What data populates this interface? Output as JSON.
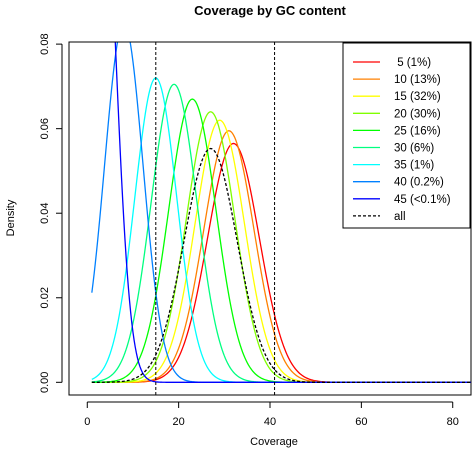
{
  "chart_data": {
    "type": "line",
    "title": "Coverage by GC content",
    "xlabel": "Coverage",
    "ylabel": "Density",
    "xlim": [
      -4,
      84
    ],
    "ylim": [
      -0.003,
      0.0805
    ],
    "x_ticks": [
      0,
      20,
      40,
      60,
      80
    ],
    "y_ticks": [
      0.0,
      0.02,
      0.04,
      0.06,
      0.08
    ],
    "y_tick_labels": [
      "0.00",
      "0.02",
      "0.04",
      "0.06",
      "0.08"
    ],
    "vlines": [
      15,
      41
    ],
    "vline_style": "dashed",
    "legend_position": "top-right",
    "grid": false,
    "series": [
      {
        "name": " 5 (1%)",
        "color": "#ff0000",
        "style": "solid",
        "peak_x": 32,
        "peak_y": 0.0565,
        "sd": 5.65
      },
      {
        "name": "10 (13%)",
        "color": "#ff8000",
        "style": "solid",
        "peak_x": 31,
        "peak_y": 0.0595,
        "sd": 5.5
      },
      {
        "name": "15 (32%)",
        "color": "#ffff00",
        "style": "solid",
        "peak_x": 29,
        "peak_y": 0.062,
        "sd": 5.4
      },
      {
        "name": "20 (30%)",
        "color": "#80ff00",
        "style": "solid",
        "peak_x": 27,
        "peak_y": 0.064,
        "sd": 5.3
      },
      {
        "name": "25 (16%)",
        "color": "#00ff00",
        "style": "solid",
        "peak_x": 23,
        "peak_y": 0.067,
        "sd": 5.2
      },
      {
        "name": "30 (6%)",
        "color": "#00ff80",
        "style": "solid",
        "peak_x": 19,
        "peak_y": 0.0705,
        "sd": 5.0
      },
      {
        "name": "35 (1%)",
        "color": "#00ffff",
        "style": "solid",
        "peak_x": 15,
        "peak_y": 0.072,
        "sd": 4.6
      },
      {
        "name": "40 (0.2%)",
        "color": "#0080ff",
        "style": "solid",
        "peak_x": 8,
        "peak_y": 0.085,
        "sd": 4.2
      },
      {
        "name": "45 (<0.1%)",
        "color": "#0000ff",
        "style": "solid",
        "peak_x": 3,
        "peak_y": 0.13,
        "sd": 3.2
      },
      {
        "name": "all",
        "color": "#000000",
        "style": "dashed",
        "peak_x": 27,
        "peak_y": 0.0553,
        "sd": 5.8
      }
    ]
  }
}
